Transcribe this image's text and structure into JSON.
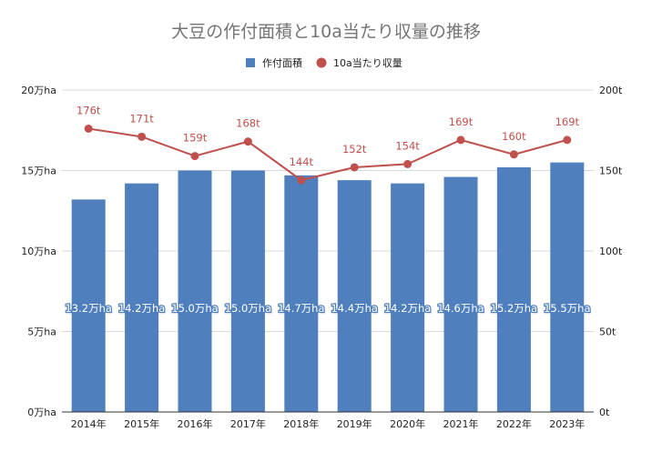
{
  "chart_data": {
    "type": "bar+line",
    "title": "大豆の作付面積と10a当たり収量の推移",
    "categories": [
      "2014年",
      "2015年",
      "2016年",
      "2017年",
      "2018年",
      "2019年",
      "2020年",
      "2021年",
      "2022年",
      "2023年"
    ],
    "series": [
      {
        "name": "作付面積",
        "type": "bar",
        "axis": "left",
        "color": "#4f7fbd",
        "values": [
          13.2,
          14.2,
          15.0,
          15.0,
          14.7,
          14.4,
          14.2,
          14.6,
          15.2,
          15.5
        ],
        "labels": [
          "13.2万ha",
          "14.2万ha",
          "15.0万ha",
          "15.0万ha",
          "14.7万ha",
          "14.4万ha",
          "14.2万ha",
          "14.6万ha",
          "15.2万ha",
          "15.5万ha"
        ]
      },
      {
        "name": "10a当たり収量",
        "type": "line",
        "axis": "right",
        "color": "#c0504d",
        "values": [
          176,
          171,
          159,
          168,
          144,
          152,
          154,
          169,
          160,
          169
        ],
        "labels": [
          "176t",
          "171t",
          "159t",
          "168t",
          "144t",
          "152t",
          "154t",
          "169t",
          "160t",
          "169t"
        ]
      }
    ],
    "left_axis": {
      "min": 0,
      "max": 20,
      "ticks": [
        0,
        5,
        10,
        15,
        20
      ],
      "tick_labels": [
        "0万ha",
        "5万ha",
        "10万ha",
        "15万ha",
        "20万ha"
      ]
    },
    "right_axis": {
      "min": 0,
      "max": 200,
      "ticks": [
        0,
        50,
        100,
        150,
        200
      ],
      "tick_labels": [
        "0t",
        "50t",
        "100t",
        "150t",
        "200t"
      ]
    },
    "legend_position": "top-center",
    "grid": true
  }
}
